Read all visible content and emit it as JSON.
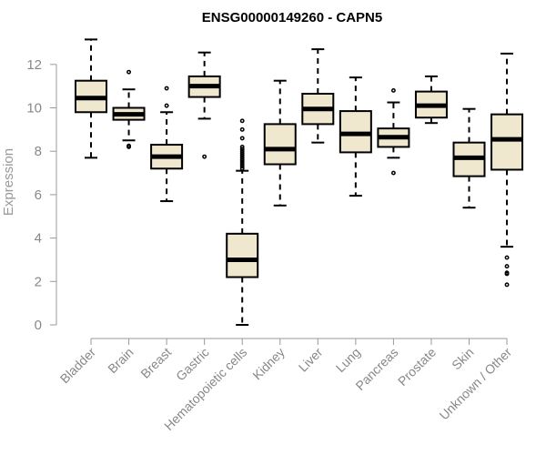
{
  "chart_data": {
    "type": "boxplot",
    "title": "ENSG00000149260 - CAPN5",
    "ylabel": "Expression",
    "xlabel": "",
    "ylim": [
      0,
      13.5
    ],
    "yticks": [
      0,
      2,
      4,
      6,
      8,
      10,
      12
    ],
    "grid": false,
    "legend": "none",
    "box_fill": "#efe8cf",
    "box_stroke": "#000000",
    "axis_color": "#999999",
    "categories": [
      "Bladder",
      "Brain",
      "Breast",
      "Gastric",
      "Hematopoietic cells",
      "Kidney",
      "Liver",
      "Lung",
      "Pancreas",
      "Prostate",
      "Skin",
      "Unknown / Other"
    ],
    "boxes": [
      {
        "category": "Bladder",
        "min": 7.7,
        "q1": 9.8,
        "median": 10.45,
        "q3": 11.25,
        "max": 13.15,
        "outliers": []
      },
      {
        "category": "Brain",
        "min": 8.5,
        "q1": 9.45,
        "median": 9.7,
        "q3": 10.0,
        "max": 10.85,
        "outliers": [
          11.65,
          8.2,
          8.25
        ]
      },
      {
        "category": "Breast",
        "min": 5.7,
        "q1": 7.2,
        "median": 7.75,
        "q3": 8.3,
        "max": 9.8,
        "outliers": [
          10.9,
          10.1
        ]
      },
      {
        "category": "Gastric",
        "min": 9.5,
        "q1": 10.5,
        "median": 11.0,
        "q3": 11.45,
        "max": 12.55,
        "outliers": [
          7.75
        ]
      },
      {
        "category": "Hematopoietic cells",
        "min": 0.0,
        "q1": 2.2,
        "median": 3.0,
        "q3": 4.2,
        "max": 7.1,
        "outliers": [
          9.4,
          9.0,
          8.6,
          8.2,
          8.1,
          8.0,
          7.9,
          7.8,
          7.7,
          7.6,
          7.5,
          7.4,
          7.3,
          7.2
        ]
      },
      {
        "category": "Kidney",
        "min": 5.5,
        "q1": 7.4,
        "median": 8.1,
        "q3": 9.25,
        "max": 11.25,
        "outliers": []
      },
      {
        "category": "Liver",
        "min": 8.4,
        "q1": 9.25,
        "median": 9.95,
        "q3": 10.65,
        "max": 12.7,
        "outliers": []
      },
      {
        "category": "Lung",
        "min": 5.95,
        "q1": 7.95,
        "median": 8.8,
        "q3": 9.85,
        "max": 11.4,
        "outliers": []
      },
      {
        "category": "Pancreas",
        "min": 7.7,
        "q1": 8.2,
        "median": 8.65,
        "q3": 9.05,
        "max": 10.25,
        "outliers": [
          10.8,
          7.0
        ]
      },
      {
        "category": "Prostate",
        "min": 9.3,
        "q1": 9.55,
        "median": 10.1,
        "q3": 10.75,
        "max": 11.45,
        "outliers": []
      },
      {
        "category": "Skin",
        "min": 5.4,
        "q1": 6.85,
        "median": 7.7,
        "q3": 8.4,
        "max": 9.95,
        "outliers": []
      },
      {
        "category": "Unknown / Other",
        "min": 3.6,
        "q1": 7.15,
        "median": 8.55,
        "q3": 9.7,
        "max": 12.5,
        "outliers": [
          3.1,
          2.7,
          2.4,
          2.35,
          1.85
        ]
      }
    ]
  }
}
